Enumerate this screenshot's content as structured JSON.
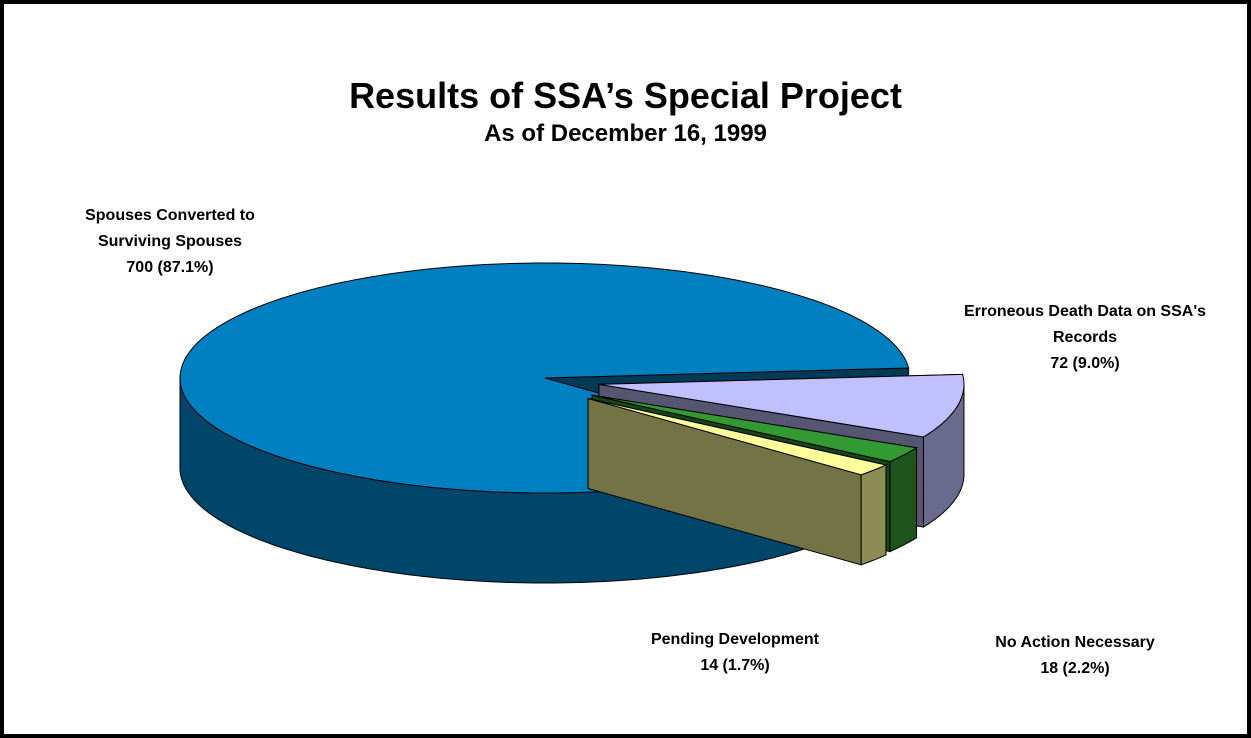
{
  "chart_data": {
    "type": "pie3d",
    "title": "Results of SSA’s Special Project",
    "subtitle": "As of December 16, 1999",
    "categories": [
      "Spouses Converted to Surviving Spouses",
      "Erroneous Death Data on SSA's Records",
      "No Action Necessary",
      "Pending Development"
    ],
    "values": [
      700,
      72,
      18,
      14
    ],
    "value_labels": [
      "700 (87.1%)",
      "72 (9.0%)",
      "18 (2.2%)",
      "14 (1.7%)"
    ],
    "colors": [
      "#0080c0",
      "#c0c0ff",
      "#339933",
      "#ffff99"
    ]
  }
}
